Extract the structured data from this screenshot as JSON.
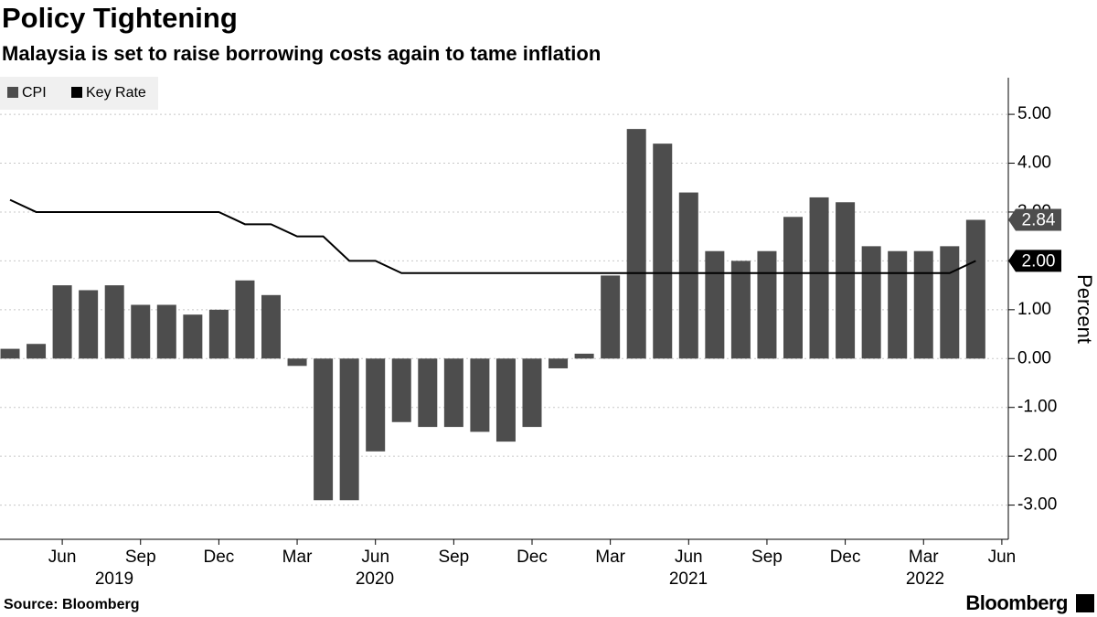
{
  "chart_data": {
    "type": "bar",
    "title": "Policy Tightening",
    "subtitle": "Malaysia is set to raise borrowing costs again to tame inflation",
    "ylabel": "Percent",
    "source": "Source: Bloomberg",
    "brand": "Bloomberg",
    "ylim": [
      -3.7,
      5.75
    ],
    "yticks": [
      {
        "value": 5,
        "label": "5.00"
      },
      {
        "value": 4,
        "label": "4.00"
      },
      {
        "value": 3,
        "label": "3.00"
      },
      {
        "value": 2,
        "label": "2.00"
      },
      {
        "value": 1,
        "label": "1.00"
      },
      {
        "value": 0,
        "label": "0.00"
      },
      {
        "value": -1,
        "label": "-1.00"
      },
      {
        "value": -2,
        "label": "-2.00"
      },
      {
        "value": -3,
        "label": "-3.00"
      }
    ],
    "xticks": [
      {
        "value": 2,
        "label": "Jun"
      },
      {
        "value": 5,
        "label": "Sep"
      },
      {
        "value": 8,
        "label": "Dec"
      },
      {
        "value": 11,
        "label": "Mar"
      },
      {
        "value": 14,
        "label": "Jun"
      },
      {
        "value": 17,
        "label": "Sep"
      },
      {
        "value": 20,
        "label": "Dec"
      },
      {
        "value": 23,
        "label": "Mar"
      },
      {
        "value": 26,
        "label": "Jun"
      },
      {
        "value": 29,
        "label": "Sep"
      },
      {
        "value": 32,
        "label": "Dec"
      },
      {
        "value": 35,
        "label": "Mar"
      },
      {
        "value": 38,
        "label": "Jun"
      }
    ],
    "x_group_labels": [
      "2019",
      "2020",
      "2021",
      "2022"
    ],
    "grid": true,
    "legend": "top-left",
    "series": [
      {
        "name": "CPI",
        "type": "bar",
        "color": "#4d4d4d",
        "values": [
          0.2,
          0.3,
          1.5,
          1.4,
          1.5,
          1.1,
          1.1,
          0.9,
          1.0,
          1.6,
          1.3,
          -0.15,
          -2.9,
          -2.9,
          -1.9,
          -1.3,
          -1.4,
          -1.4,
          -1.5,
          -1.7,
          -1.4,
          -0.2,
          0.1,
          1.7,
          4.7,
          4.4,
          3.4,
          2.2,
          2.0,
          2.2,
          2.9,
          3.3,
          3.2,
          2.3,
          2.2,
          2.2,
          2.3,
          2.84
        ]
      },
      {
        "name": "Key Rate",
        "type": "line",
        "color": "#000000",
        "values": [
          3.25,
          3.0,
          3.0,
          3.0,
          3.0,
          3.0,
          3.0,
          3.0,
          3.0,
          2.75,
          2.75,
          2.5,
          2.5,
          2.0,
          2.0,
          1.75,
          1.75,
          1.75,
          1.75,
          1.75,
          1.75,
          1.75,
          1.75,
          1.75,
          1.75,
          1.75,
          1.75,
          1.75,
          1.75,
          1.75,
          1.75,
          1.75,
          1.75,
          1.75,
          1.75,
          1.75,
          1.75,
          2.0
        ],
        "value_labels": [
          null,
          null,
          null,
          null,
          null,
          null,
          null,
          null,
          null,
          null,
          null,
          null,
          null,
          null,
          null,
          null,
          null,
          null,
          null,
          null,
          null,
          null,
          null,
          null,
          null,
          null,
          null,
          null,
          null,
          null,
          null,
          null,
          null,
          null,
          null,
          null,
          null,
          "2.00"
        ]
      }
    ]
  }
}
